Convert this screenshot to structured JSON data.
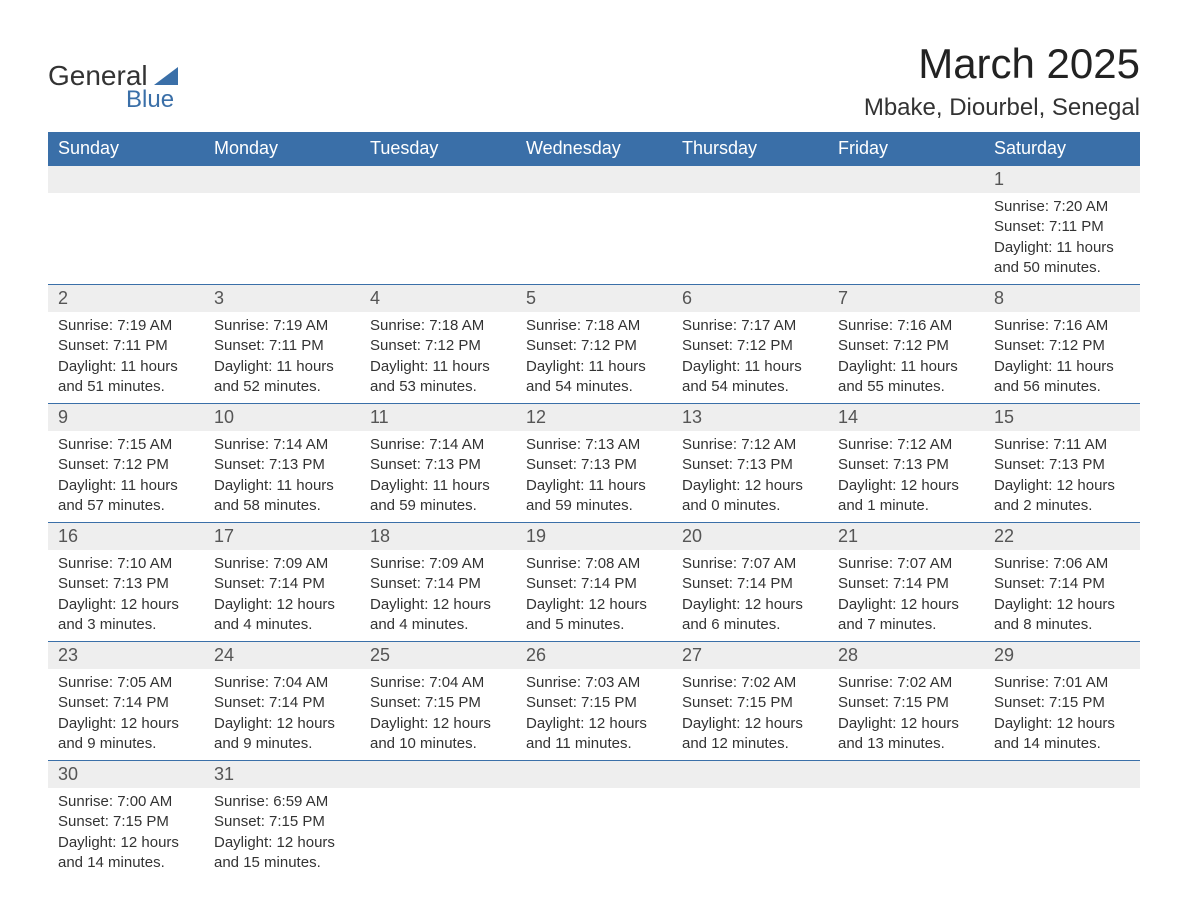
{
  "branding": {
    "logo_text_1": "General",
    "logo_text_2": "Blue",
    "brand_color": "#3a6fa8"
  },
  "header": {
    "month_title": "March 2025",
    "location": "Mbake, Diourbel, Senegal"
  },
  "styling": {
    "table_header_bg": "#3a6fa8",
    "table_header_fg": "#ffffff",
    "daynum_bg": "#eeeeee",
    "daynum_fg": "#555555",
    "detail_fg": "#333333",
    "row_border_color": "#3a6fa8",
    "page_bg": "#ffffff",
    "font_family": "Arial",
    "month_title_fontsize": 42,
    "location_fontsize": 24,
    "header_cell_fontsize": 18,
    "daynum_fontsize": 18,
    "detail_fontsize": 15,
    "columns": 7
  },
  "days_of_week": [
    "Sunday",
    "Monday",
    "Tuesday",
    "Wednesday",
    "Thursday",
    "Friday",
    "Saturday"
  ],
  "weeks": [
    [
      null,
      null,
      null,
      null,
      null,
      null,
      {
        "n": "1",
        "sr": "Sunrise: 7:20 AM",
        "ss": "Sunset: 7:11 PM",
        "d1": "Daylight: 11 hours",
        "d2": "and 50 minutes."
      }
    ],
    [
      {
        "n": "2",
        "sr": "Sunrise: 7:19 AM",
        "ss": "Sunset: 7:11 PM",
        "d1": "Daylight: 11 hours",
        "d2": "and 51 minutes."
      },
      {
        "n": "3",
        "sr": "Sunrise: 7:19 AM",
        "ss": "Sunset: 7:11 PM",
        "d1": "Daylight: 11 hours",
        "d2": "and 52 minutes."
      },
      {
        "n": "4",
        "sr": "Sunrise: 7:18 AM",
        "ss": "Sunset: 7:12 PM",
        "d1": "Daylight: 11 hours",
        "d2": "and 53 minutes."
      },
      {
        "n": "5",
        "sr": "Sunrise: 7:18 AM",
        "ss": "Sunset: 7:12 PM",
        "d1": "Daylight: 11 hours",
        "d2": "and 54 minutes."
      },
      {
        "n": "6",
        "sr": "Sunrise: 7:17 AM",
        "ss": "Sunset: 7:12 PM",
        "d1": "Daylight: 11 hours",
        "d2": "and 54 minutes."
      },
      {
        "n": "7",
        "sr": "Sunrise: 7:16 AM",
        "ss": "Sunset: 7:12 PM",
        "d1": "Daylight: 11 hours",
        "d2": "and 55 minutes."
      },
      {
        "n": "8",
        "sr": "Sunrise: 7:16 AM",
        "ss": "Sunset: 7:12 PM",
        "d1": "Daylight: 11 hours",
        "d2": "and 56 minutes."
      }
    ],
    [
      {
        "n": "9",
        "sr": "Sunrise: 7:15 AM",
        "ss": "Sunset: 7:12 PM",
        "d1": "Daylight: 11 hours",
        "d2": "and 57 minutes."
      },
      {
        "n": "10",
        "sr": "Sunrise: 7:14 AM",
        "ss": "Sunset: 7:13 PM",
        "d1": "Daylight: 11 hours",
        "d2": "and 58 minutes."
      },
      {
        "n": "11",
        "sr": "Sunrise: 7:14 AM",
        "ss": "Sunset: 7:13 PM",
        "d1": "Daylight: 11 hours",
        "d2": "and 59 minutes."
      },
      {
        "n": "12",
        "sr": "Sunrise: 7:13 AM",
        "ss": "Sunset: 7:13 PM",
        "d1": "Daylight: 11 hours",
        "d2": "and 59 minutes."
      },
      {
        "n": "13",
        "sr": "Sunrise: 7:12 AM",
        "ss": "Sunset: 7:13 PM",
        "d1": "Daylight: 12 hours",
        "d2": "and 0 minutes."
      },
      {
        "n": "14",
        "sr": "Sunrise: 7:12 AM",
        "ss": "Sunset: 7:13 PM",
        "d1": "Daylight: 12 hours",
        "d2": "and 1 minute."
      },
      {
        "n": "15",
        "sr": "Sunrise: 7:11 AM",
        "ss": "Sunset: 7:13 PM",
        "d1": "Daylight: 12 hours",
        "d2": "and 2 minutes."
      }
    ],
    [
      {
        "n": "16",
        "sr": "Sunrise: 7:10 AM",
        "ss": "Sunset: 7:13 PM",
        "d1": "Daylight: 12 hours",
        "d2": "and 3 minutes."
      },
      {
        "n": "17",
        "sr": "Sunrise: 7:09 AM",
        "ss": "Sunset: 7:14 PM",
        "d1": "Daylight: 12 hours",
        "d2": "and 4 minutes."
      },
      {
        "n": "18",
        "sr": "Sunrise: 7:09 AM",
        "ss": "Sunset: 7:14 PM",
        "d1": "Daylight: 12 hours",
        "d2": "and 4 minutes."
      },
      {
        "n": "19",
        "sr": "Sunrise: 7:08 AM",
        "ss": "Sunset: 7:14 PM",
        "d1": "Daylight: 12 hours",
        "d2": "and 5 minutes."
      },
      {
        "n": "20",
        "sr": "Sunrise: 7:07 AM",
        "ss": "Sunset: 7:14 PM",
        "d1": "Daylight: 12 hours",
        "d2": "and 6 minutes."
      },
      {
        "n": "21",
        "sr": "Sunrise: 7:07 AM",
        "ss": "Sunset: 7:14 PM",
        "d1": "Daylight: 12 hours",
        "d2": "and 7 minutes."
      },
      {
        "n": "22",
        "sr": "Sunrise: 7:06 AM",
        "ss": "Sunset: 7:14 PM",
        "d1": "Daylight: 12 hours",
        "d2": "and 8 minutes."
      }
    ],
    [
      {
        "n": "23",
        "sr": "Sunrise: 7:05 AM",
        "ss": "Sunset: 7:14 PM",
        "d1": "Daylight: 12 hours",
        "d2": "and 9 minutes."
      },
      {
        "n": "24",
        "sr": "Sunrise: 7:04 AM",
        "ss": "Sunset: 7:14 PM",
        "d1": "Daylight: 12 hours",
        "d2": "and 9 minutes."
      },
      {
        "n": "25",
        "sr": "Sunrise: 7:04 AM",
        "ss": "Sunset: 7:15 PM",
        "d1": "Daylight: 12 hours",
        "d2": "and 10 minutes."
      },
      {
        "n": "26",
        "sr": "Sunrise: 7:03 AM",
        "ss": "Sunset: 7:15 PM",
        "d1": "Daylight: 12 hours",
        "d2": "and 11 minutes."
      },
      {
        "n": "27",
        "sr": "Sunrise: 7:02 AM",
        "ss": "Sunset: 7:15 PM",
        "d1": "Daylight: 12 hours",
        "d2": "and 12 minutes."
      },
      {
        "n": "28",
        "sr": "Sunrise: 7:02 AM",
        "ss": "Sunset: 7:15 PM",
        "d1": "Daylight: 12 hours",
        "d2": "and 13 minutes."
      },
      {
        "n": "29",
        "sr": "Sunrise: 7:01 AM",
        "ss": "Sunset: 7:15 PM",
        "d1": "Daylight: 12 hours",
        "d2": "and 14 minutes."
      }
    ],
    [
      {
        "n": "30",
        "sr": "Sunrise: 7:00 AM",
        "ss": "Sunset: 7:15 PM",
        "d1": "Daylight: 12 hours",
        "d2": "and 14 minutes."
      },
      {
        "n": "31",
        "sr": "Sunrise: 6:59 AM",
        "ss": "Sunset: 7:15 PM",
        "d1": "Daylight: 12 hours",
        "d2": "and 15 minutes."
      },
      null,
      null,
      null,
      null,
      null
    ]
  ]
}
